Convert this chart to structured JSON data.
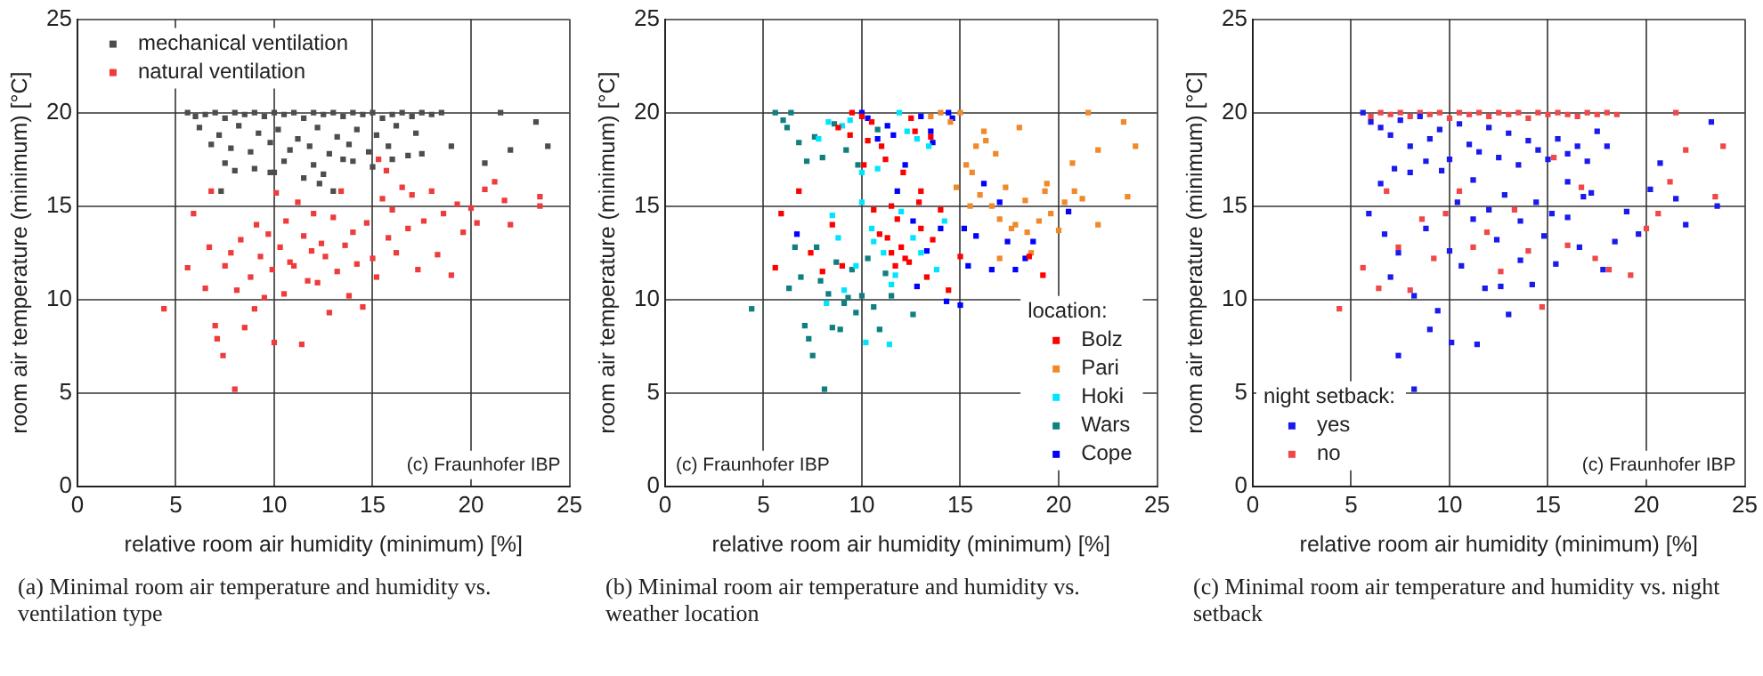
{
  "chart_data": [
    {
      "type": "scatter",
      "title": "(a) Minimal room air temperature and humidity vs. ventilation type",
      "xlabel": "relative room air humidity (minimum) [%]",
      "ylabel": "room air temperature (minimum) [°C]",
      "xlim": [
        0,
        25
      ],
      "ylim": [
        0,
        25
      ],
      "xticks": [
        0,
        5,
        10,
        15,
        20,
        25
      ],
      "yticks": [
        0,
        5,
        10,
        15,
        20,
        25
      ],
      "grid": true,
      "legend": "top left",
      "marker": "square",
      "annotations": [
        "(c) Fraunhofer IBP"
      ],
      "series": [
        {
          "name": "mechanical ventilation",
          "color": "#4d4d4d",
          "x": [
            5.6,
            6,
            6.5,
            7,
            7.5,
            8,
            8.5,
            9,
            9.5,
            10,
            10.5,
            11,
            11.5,
            12,
            12.5,
            13,
            13.5,
            14,
            14.5,
            15,
            15.5,
            16,
            16.5,
            17,
            17.5,
            18,
            18.5,
            6.2,
            7.2,
            8.2,
            9.2,
            10.2,
            11.2,
            12.2,
            13.2,
            14.2,
            15.2,
            16.2,
            17.2,
            6.8,
            7.8,
            8.8,
            9.8,
            10.8,
            11.8,
            12.8,
            13.8,
            14.8,
            15.8,
            16.8,
            7.5,
            9,
            10.5,
            12,
            13.5,
            15,
            8,
            10,
            12.3,
            14,
            16,
            17.5,
            19,
            20.7,
            21.5,
            22,
            23.3,
            23.9,
            7.3,
            13,
            12.5,
            9.8,
            11.5
          ],
          "values": [
            20,
            19.8,
            19.9,
            20,
            19.7,
            20,
            19.9,
            20,
            19.8,
            20,
            19.9,
            20,
            19.7,
            20,
            19.9,
            20,
            19.8,
            20,
            19.9,
            20,
            19.7,
            19.9,
            20,
            19.8,
            20,
            19.9,
            20,
            19.2,
            18.8,
            19.3,
            18.9,
            19.1,
            18.6,
            19.2,
            18.7,
            19.1,
            18.8,
            19.3,
            18.9,
            18.3,
            18.1,
            17.9,
            18.4,
            18,
            18.2,
            17.8,
            18.3,
            17.9,
            18.2,
            17.7,
            17.3,
            17,
            17.4,
            17.2,
            17.5,
            17.1,
            16.9,
            16.8,
            16.2,
            17.4,
            17.5,
            17.8,
            18.2,
            17.3,
            20,
            18,
            19.5,
            18.2,
            15.8,
            15.8,
            16.7,
            16.8,
            16.5
          ]
        },
        {
          "name": "natural ventilation",
          "color": "#ee3b3b",
          "x": [
            4.4,
            5.6,
            5.9,
            6.5,
            6.7,
            7,
            7.1,
            7.4,
            7.5,
            7.8,
            8,
            8.1,
            8.3,
            8.5,
            8.8,
            9,
            9.1,
            9.3,
            9.5,
            9.7,
            9.9,
            10,
            10.1,
            10.3,
            10.5,
            10.6,
            10.8,
            11,
            11.2,
            11.4,
            11.5,
            11.7,
            11.9,
            12,
            12.2,
            12.4,
            12.6,
            12.8,
            13,
            13.2,
            13.4,
            13.6,
            13.8,
            14,
            14.2,
            14.5,
            14.7,
            15,
            15.2,
            15.5,
            15.8,
            16,
            16.2,
            16.5,
            16.8,
            17,
            17.3,
            17.6,
            18,
            18.3,
            18.6,
            19,
            19.3,
            19.6,
            20,
            20.3,
            20.7,
            21.2,
            21.7,
            22,
            23.5,
            23.5,
            15.3,
            15.7,
            6.8
          ],
          "values": [
            9.5,
            11.7,
            14.6,
            10.6,
            12.8,
            8.6,
            7.9,
            7,
            11.8,
            12.5,
            5.2,
            10.5,
            13.2,
            8.5,
            11.2,
            9.5,
            14,
            12.3,
            10.1,
            13.5,
            11.6,
            7.7,
            15.7,
            12.8,
            10.3,
            14.2,
            12,
            11.8,
            15.2,
            7.6,
            13.4,
            11,
            12.6,
            14.6,
            10.9,
            13,
            12.3,
            9.3,
            14.4,
            11.5,
            15.8,
            12.9,
            10.2,
            13.6,
            11.9,
            9.6,
            14.1,
            12.2,
            11.2,
            15.4,
            13.3,
            14.8,
            12.5,
            16,
            13.8,
            15.6,
            11.6,
            14.2,
            15.8,
            12.4,
            14.6,
            11.3,
            15.1,
            13.6,
            14.9,
            14.1,
            15.9,
            16.3,
            15.3,
            14,
            15.5,
            15,
            17.5,
            16.9,
            15.8
          ]
        }
      ]
    },
    {
      "type": "scatter",
      "title": "(b) Minimal room air temperature and humidity vs. weather location",
      "xlabel": "relative room air humidity (minimum) [%]",
      "ylabel": "room air temperature (minimum) [°C]",
      "xlim": [
        0,
        25
      ],
      "ylim": [
        0,
        25
      ],
      "xticks": [
        0,
        5,
        10,
        15,
        20,
        25
      ],
      "yticks": [
        0,
        5,
        10,
        15,
        20,
        25
      ],
      "grid": true,
      "legend": "bottom right",
      "legend_title": "location:",
      "marker": "square",
      "annotations": [
        "(c) Fraunhofer IBP"
      ],
      "series": [
        {
          "name": "Bolz",
          "color": "#ff0000",
          "x": [
            5.6,
            5.9,
            6.8,
            7.4,
            8,
            8.5,
            9,
            9.5,
            10,
            10.3,
            10.6,
            10.9,
            11.2,
            11.5,
            11.8,
            12.1,
            12.4,
            12.7,
            13,
            13.3,
            13.6,
            14,
            14.4,
            10.5,
            11,
            11.5,
            12,
            12.5,
            13,
            8.8,
            9.4,
            10.1,
            11.3,
            12.2,
            13.5,
            15,
            18.5,
            19.2,
            11.7,
            12.9
          ],
          "values": [
            11.7,
            14.6,
            15.8,
            12.5,
            11.5,
            14,
            11.8,
            20,
            19.8,
            18.5,
            14.8,
            13.5,
            17.5,
            12.5,
            14.3,
            16.8,
            12,
            19,
            15.8,
            11.2,
            13.2,
            14.8,
            10.5,
            19.5,
            18.2,
            15,
            12.8,
            19.7,
            13.8,
            19.2,
            18.8,
            17.2,
            13.3,
            12.2,
            18.7,
            12.3,
            12.3,
            11.3,
            11.8,
            15.2
          ]
        },
        {
          "name": "Pari",
          "color": "#f0892a",
          "x": [
            13.5,
            14,
            14.5,
            15,
            15.3,
            15.6,
            16,
            16.3,
            16.6,
            17,
            17.3,
            17.6,
            18,
            18.3,
            18.6,
            19,
            19.3,
            19.6,
            20,
            20.3,
            20.7,
            21.2,
            21.5,
            22,
            23.3,
            23.5,
            23.9,
            15.5,
            16.2,
            17,
            17.8,
            18.4,
            16.8,
            15.8,
            14.8,
            19.4,
            20.8,
            22
          ],
          "values": [
            19.8,
            20,
            19.5,
            20,
            17.2,
            16.8,
            15.6,
            18.5,
            15,
            14.3,
            16,
            13.8,
            19.2,
            15.3,
            12.5,
            14.2,
            15.8,
            14.6,
            13.7,
            15.2,
            17.3,
            15.4,
            20,
            14,
            19.5,
            15.5,
            18.2,
            15,
            19,
            12.2,
            14,
            13.6,
            17.8,
            18.2,
            16,
            16.2,
            15.8,
            18
          ]
        },
        {
          "name": "Hoki",
          "color": "#00e5ff",
          "x": [
            7.8,
            8.2,
            8.5,
            8.8,
            9.1,
            9.4,
            9.7,
            10,
            10.2,
            10.5,
            10.8,
            11.1,
            11.4,
            11.7,
            12,
            12.3,
            12.6,
            13,
            13.4,
            13.8,
            14.2,
            10,
            11.5,
            9,
            12.8,
            8.3,
            10.6,
            11.9
          ],
          "values": [
            18.6,
            9.8,
            14.5,
            13.3,
            10.5,
            19.6,
            11.8,
            15.2,
            7.7,
            13.8,
            17,
            12.5,
            7.6,
            11.3,
            14.7,
            19,
            13.3,
            12.5,
            18.2,
            11.6,
            14.2,
            16.8,
            10.8,
            19.3,
            18.6,
            19.5,
            13.1,
            20
          ]
        },
        {
          "name": "Wars",
          "color": "#0f7f7f",
          "x": [
            4.4,
            5.6,
            6,
            6.3,
            6.6,
            6.9,
            7.1,
            7.3,
            7.5,
            7.7,
            7.9,
            8.1,
            8.3,
            8.5,
            8.7,
            8.9,
            9.1,
            9.3,
            9.5,
            9.7,
            10,
            10.3,
            10.6,
            10.9,
            11.2,
            11.5,
            6.2,
            6.8,
            7.2,
            7.6,
            8,
            8.6,
            9.2,
            9.8,
            10.8,
            12.6,
            6.4
          ],
          "values": [
            9.5,
            20,
            19.6,
            10.6,
            12.8,
            11.2,
            8.6,
            7.9,
            7,
            12.8,
            11,
            5.2,
            10.3,
            8.5,
            12,
            8.4,
            9.8,
            10.1,
            11.6,
            9.3,
            10.2,
            12.2,
            9.6,
            8.4,
            11.4,
            10.2,
            19.2,
            18.4,
            17.4,
            18.7,
            17.6,
            19.4,
            18,
            17.2,
            19.1,
            9.2,
            20
          ]
        },
        {
          "name": "Cope",
          "color": "#0000ff",
          "x": [
            6.7,
            10,
            10.8,
            11.3,
            11.8,
            12.2,
            12.6,
            13,
            13.3,
            13.6,
            14,
            14.3,
            14.6,
            15,
            15.4,
            15.8,
            16.2,
            16.6,
            17,
            17.4,
            17.8,
            18.3,
            18.7,
            20.5,
            12.8,
            13.5,
            14.4,
            15.2,
            11.6,
            10.3
          ],
          "values": [
            13.5,
            20,
            18.6,
            19.3,
            15.8,
            17.2,
            14.2,
            19.8,
            12.6,
            18.4,
            13.8,
            9.9,
            19.7,
            9.7,
            11.8,
            13.4,
            16.2,
            11.6,
            15.2,
            13.1,
            11.6,
            12.2,
            13.1,
            14.7,
            10.7,
            19,
            20,
            13.8,
            18.8,
            19.7
          ]
        }
      ]
    },
    {
      "type": "scatter",
      "title": "(c) Minimal room air temperature and humidity vs. night setback",
      "xlabel": "relative room air humidity (minimum) [%]",
      "ylabel": "room air temperature (minimum) [°C]",
      "xlim": [
        0,
        25
      ],
      "ylim": [
        0,
        25
      ],
      "xticks": [
        0,
        5,
        10,
        15,
        20,
        25
      ],
      "yticks": [
        0,
        5,
        10,
        15,
        20,
        25
      ],
      "grid": true,
      "legend": "bottom left",
      "legend_title": "night setback:",
      "marker": "square",
      "annotations": [
        "(c) Fraunhofer IBP"
      ],
      "series": [
        {
          "name": "yes",
          "color": "#1a1aee",
          "x": [
            5.6,
            6,
            6.5,
            7,
            7.5,
            8,
            8.5,
            9,
            9.5,
            10,
            10.5,
            11,
            11.5,
            12,
            12.5,
            13,
            13.5,
            14,
            14.5,
            15,
            15.5,
            16,
            16.5,
            17,
            17.5,
            18,
            6.5,
            7.2,
            8,
            8.8,
            9.6,
            10.4,
            11.2,
            12,
            12.8,
            13.6,
            14.4,
            15.2,
            16,
            16.8,
            7,
            7.4,
            8.2,
            8.8,
            9.4,
            10,
            10.6,
            11.2,
            11.8,
            12.4,
            13,
            13.6,
            14.2,
            14.8,
            15.4,
            16,
            16.6,
            17.2,
            17.8,
            18.4,
            19,
            19.6,
            20.2,
            20.7,
            21.5,
            22,
            23.3,
            23.6,
            8.2,
            10.1,
            11.4,
            7.4,
            6.7,
            5.9,
            9,
            12.6
          ],
          "values": [
            20,
            19.5,
            19.2,
            18.8,
            19.6,
            18.2,
            19.8,
            18.6,
            19.1,
            17.5,
            19.4,
            18.3,
            17.9,
            19.2,
            17.6,
            18.9,
            17.2,
            18.5,
            18,
            17.5,
            18.6,
            17.8,
            18.2,
            17.4,
            19,
            18.2,
            16.2,
            17,
            16.8,
            17.4,
            16.9,
            15.2,
            16.4,
            14.8,
            15.6,
            14.2,
            15.2,
            14.6,
            16.3,
            15.5,
            11.2,
            12.5,
            10.2,
            13.8,
            9.4,
            12.6,
            11.8,
            14.3,
            10.6,
            13.2,
            9.2,
            12.1,
            10.8,
            13.4,
            11.9,
            14.4,
            12.8,
            15.7,
            11.6,
            13.1,
            14.7,
            13.5,
            15.9,
            17.3,
            15.4,
            14,
            19.5,
            15,
            5.2,
            7.7,
            7.6,
            7,
            13.5,
            14.6,
            8.4,
            10.7
          ]
        },
        {
          "name": "no",
          "color": "#f04848",
          "x": [
            4.4,
            5.6,
            6,
            6.5,
            7,
            7.5,
            8,
            8.5,
            9,
            9.5,
            10,
            10.5,
            11,
            11.5,
            12,
            12.5,
            13,
            13.5,
            14,
            14.5,
            15,
            15.5,
            16,
            16.5,
            17,
            17.5,
            18,
            18.5,
            6.4,
            6.8,
            7.4,
            8,
            8.6,
            9.2,
            9.8,
            10.5,
            11.2,
            11.9,
            12.6,
            13.3,
            14,
            14.7,
            15.3,
            16,
            16.7,
            17.4,
            18.1,
            19.2,
            20,
            20.6,
            21.2,
            21.5,
            22,
            23.5,
            23.9
          ],
          "values": [
            9.5,
            11.7,
            19.8,
            20,
            19.9,
            20,
            19.8,
            20,
            19.9,
            20,
            19.7,
            20,
            19.9,
            20,
            19.8,
            20,
            19.9,
            20,
            19.7,
            20,
            19.9,
            20,
            19.9,
            19.8,
            20,
            19.9,
            20,
            19.9,
            10.6,
            15.8,
            12.8,
            10.5,
            14.3,
            12.2,
            14.6,
            15.8,
            12.8,
            13.6,
            11.5,
            14.8,
            12.6,
            9.6,
            17.6,
            12.9,
            16,
            12.2,
            11.6,
            11.3,
            13.8,
            14.6,
            16.3,
            20,
            18,
            15.5,
            18.2
          ]
        }
      ]
    }
  ]
}
